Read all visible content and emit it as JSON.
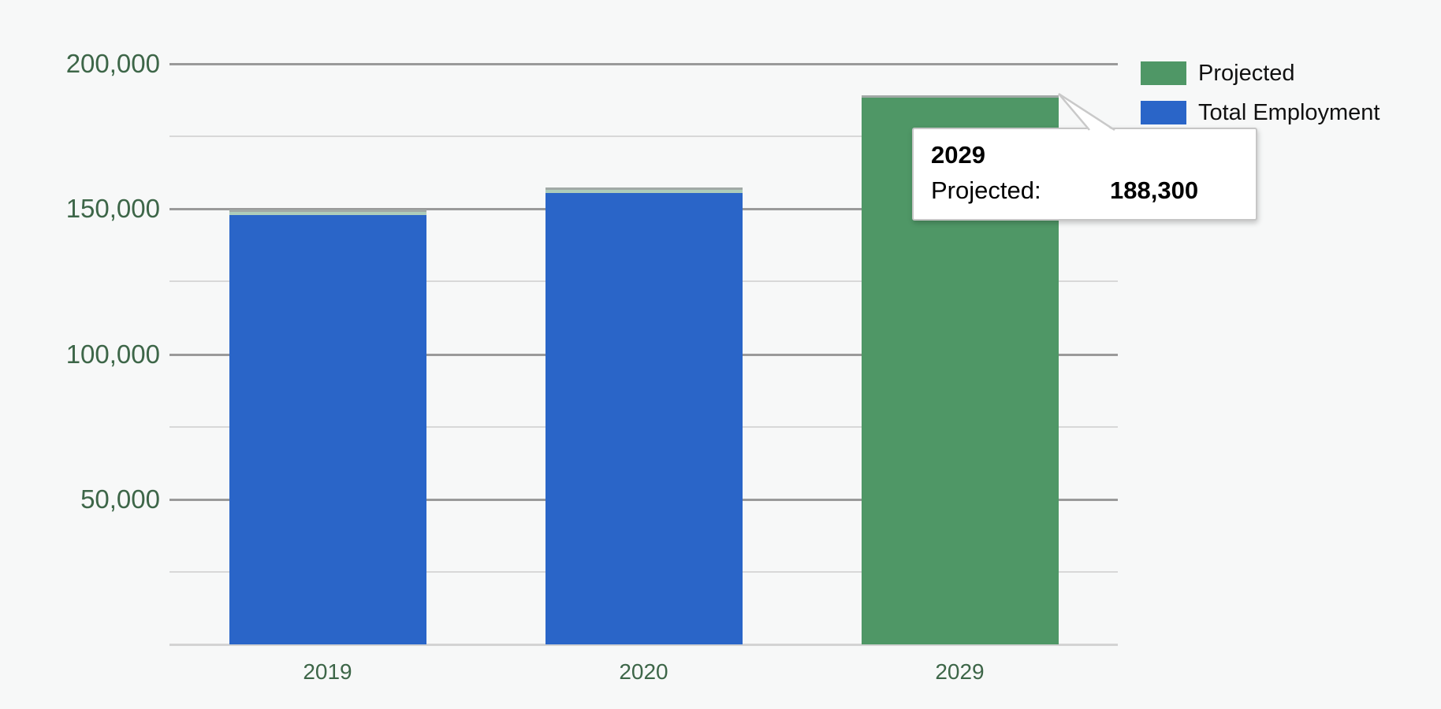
{
  "background_color": "#f7f8f8",
  "chart_data": {
    "type": "bar",
    "categories": [
      "2019",
      "2020",
      "2029"
    ],
    "series": [
      {
        "name": "Total Employment",
        "color": "#2a65c8",
        "values": [
          148000,
          155400,
          null
        ]
      },
      {
        "name": "Projected",
        "color": "#4f9766",
        "values": [
          null,
          null,
          188300
        ]
      }
    ],
    "title": "",
    "xlabel": "",
    "ylabel": "",
    "ylim": [
      0,
      200000
    ],
    "ytick_values": [
      50000,
      100000,
      150000,
      200000
    ],
    "ytick_labels": [
      "50,000",
      "100,000",
      "150,000",
      "200,000"
    ],
    "minor_tick_values": [
      25000,
      75000,
      125000,
      175000
    ],
    "grid": true,
    "legend_position": "top-right",
    "axis_label_color": "#3d6648",
    "major_gridline_color": "#9a9a9a",
    "minor_gridline_color": "#d8d8d8",
    "baseline_color": "#d3d3d3",
    "bar_top_edge_color": "#a1a9a6",
    "bar_pale_cap_color": "#aecdbb"
  },
  "legend": {
    "items": [
      {
        "label": "Projected",
        "color": "#4f9766"
      },
      {
        "label": "Total Employment",
        "color": "#2a65c8"
      }
    ]
  },
  "tooltip": {
    "title": "2029",
    "series_label": "Projected:",
    "value": "188,300"
  }
}
